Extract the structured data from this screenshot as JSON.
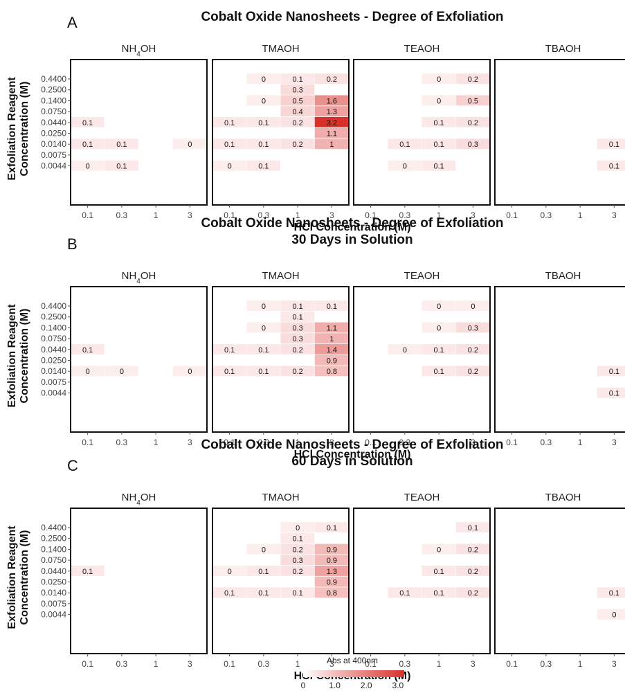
{
  "chart_data": {
    "type": "heatmap",
    "xlabel": "HCl Concentration (M)",
    "ylabel": "Exfoliation Reagent Concentration (M)",
    "x_categories": [
      "0.1",
      "0.3",
      "1",
      "3"
    ],
    "y_categories": [
      "0.4400",
      "0.2500",
      "0.1400",
      "0.0750",
      "0.0440",
      "0.0250",
      "0.0140",
      "0.0075",
      "0.0044"
    ],
    "facets": [
      {
        "label": "NH",
        "sub": "4",
        "tail": "OH"
      },
      {
        "label": "TMAOH",
        "sub": "",
        "tail": ""
      },
      {
        "label": "TEAOH",
        "sub": "",
        "tail": ""
      },
      {
        "label": "TBAOH",
        "sub": "",
        "tail": ""
      }
    ],
    "legend": {
      "title": "Abs at 400nm",
      "ticks": [
        "0",
        "1.0",
        "2.0",
        "3.0"
      ],
      "range": [
        0,
        3.2
      ],
      "color_low": "#fdeeee",
      "color_high": "#d7312a",
      "placement": "bottom"
    },
    "panels": [
      {
        "letter": "A",
        "title_lines": [
          "Cobalt Oxide Nanosheets - Degree of Exfoliation"
        ],
        "cells": [
          [
            0,
            "0.1",
            "0.0440",
            0.1,
            "0.1"
          ],
          [
            0,
            "0.1",
            "0.0140",
            0.1,
            "0.1"
          ],
          [
            0,
            "0.3",
            "0.0140",
            0.1,
            "0.1"
          ],
          [
            0,
            "3",
            "0.0140",
            0,
            "0"
          ],
          [
            0,
            "0.1",
            "0.0044",
            0,
            "0"
          ],
          [
            0,
            "0.3",
            "0.0044",
            0.1,
            "0.1"
          ],
          [
            1,
            "0.3",
            "0.4400",
            0,
            "0"
          ],
          [
            1,
            "1",
            "0.4400",
            0.1,
            "0.1"
          ],
          [
            1,
            "3",
            "0.4400",
            0.2,
            "0.2"
          ],
          [
            1,
            "1",
            "0.2500",
            0.3,
            "0.3"
          ],
          [
            1,
            "0.3",
            "0.1400",
            0,
            "0"
          ],
          [
            1,
            "1",
            "0.1400",
            0.5,
            "0.5"
          ],
          [
            1,
            "3",
            "0.1400",
            1.6,
            "1.6"
          ],
          [
            1,
            "1",
            "0.0750",
            0.4,
            "0.4"
          ],
          [
            1,
            "3",
            "0.0750",
            1.3,
            "1.3"
          ],
          [
            1,
            "0.1",
            "0.0440",
            0.1,
            "0.1"
          ],
          [
            1,
            "0.3",
            "0.0440",
            0.1,
            "0.1"
          ],
          [
            1,
            "1",
            "0.0440",
            0.2,
            "0.2"
          ],
          [
            1,
            "3",
            "0.0440",
            3.2,
            "3.2"
          ],
          [
            1,
            "3",
            "0.0250",
            1.1,
            "1.1"
          ],
          [
            1,
            "0.1",
            "0.0140",
            0.1,
            "0.1"
          ],
          [
            1,
            "0.3",
            "0.0140",
            0.1,
            "0.1"
          ],
          [
            1,
            "1",
            "0.0140",
            0.2,
            "0.2"
          ],
          [
            1,
            "3",
            "0.0140",
            1,
            "1"
          ],
          [
            1,
            "0.1",
            "0.0044",
            0,
            "0"
          ],
          [
            1,
            "0.3",
            "0.0044",
            0.1,
            "0.1"
          ],
          [
            2,
            "1",
            "0.4400",
            0,
            "0"
          ],
          [
            2,
            "3",
            "0.4400",
            0.2,
            "0.2"
          ],
          [
            2,
            "1",
            "0.1400",
            0,
            "0"
          ],
          [
            2,
            "3",
            "0.1400",
            0.5,
            "0.5"
          ],
          [
            2,
            "1",
            "0.0440",
            0.1,
            "0.1"
          ],
          [
            2,
            "3",
            "0.0440",
            0.2,
            "0.2"
          ],
          [
            2,
            "0.3",
            "0.0140",
            0.1,
            "0.1"
          ],
          [
            2,
            "1",
            "0.0140",
            0.1,
            "0.1"
          ],
          [
            2,
            "3",
            "0.0140",
            0.3,
            "0.3"
          ],
          [
            2,
            "0.3",
            "0.0044",
            0,
            "0"
          ],
          [
            2,
            "1",
            "0.0044",
            0.1,
            "0.1"
          ],
          [
            3,
            "3",
            "0.0140",
            0.1,
            "0.1"
          ],
          [
            3,
            "3",
            "0.0044",
            0.1,
            "0.1"
          ]
        ]
      },
      {
        "letter": "B",
        "title_lines": [
          "Cobalt Oxide Nanosheets - Degree of Exfoliation",
          "30 Days in Solution"
        ],
        "cells": [
          [
            0,
            "0.1",
            "0.0440",
            0.1,
            "0.1"
          ],
          [
            0,
            "0.1",
            "0.0140",
            0,
            "0"
          ],
          [
            0,
            "0.3",
            "0.0140",
            0,
            "0"
          ],
          [
            0,
            "3",
            "0.0140",
            0,
            "0"
          ],
          [
            1,
            "0.3",
            "0.4400",
            0,
            "0"
          ],
          [
            1,
            "1",
            "0.4400",
            0.1,
            "0.1"
          ],
          [
            1,
            "3",
            "0.4400",
            0.1,
            "0.1"
          ],
          [
            1,
            "1",
            "0.2500",
            0.1,
            "0.1"
          ],
          [
            1,
            "0.3",
            "0.1400",
            0,
            "0"
          ],
          [
            1,
            "1",
            "0.1400",
            0.3,
            "0.3"
          ],
          [
            1,
            "3",
            "0.1400",
            1.1,
            "1.1"
          ],
          [
            1,
            "1",
            "0.0750",
            0.3,
            "0.3"
          ],
          [
            1,
            "3",
            "0.0750",
            1,
            "1"
          ],
          [
            1,
            "0.1",
            "0.0440",
            0.1,
            "0.1"
          ],
          [
            1,
            "0.3",
            "0.0440",
            0.1,
            "0.1"
          ],
          [
            1,
            "1",
            "0.0440",
            0.2,
            "0.2"
          ],
          [
            1,
            "3",
            "0.0440",
            1.4,
            "1.4"
          ],
          [
            1,
            "3",
            "0.0250",
            0.9,
            "0.9"
          ],
          [
            1,
            "0.1",
            "0.0140",
            0.1,
            "0.1"
          ],
          [
            1,
            "0.3",
            "0.0140",
            0.1,
            "0.1"
          ],
          [
            1,
            "1",
            "0.0140",
            0.2,
            "0.2"
          ],
          [
            1,
            "3",
            "0.0140",
            0.8,
            "0.8"
          ],
          [
            2,
            "1",
            "0.4400",
            0,
            "0"
          ],
          [
            2,
            "3",
            "0.4400",
            0,
            "0"
          ],
          [
            2,
            "1",
            "0.1400",
            0,
            "0"
          ],
          [
            2,
            "3",
            "0.1400",
            0.3,
            "0.3"
          ],
          [
            2,
            "0.3",
            "0.0440",
            0,
            "0"
          ],
          [
            2,
            "1",
            "0.0440",
            0.1,
            "0.1"
          ],
          [
            2,
            "3",
            "0.0440",
            0.2,
            "0.2"
          ],
          [
            2,
            "1",
            "0.0140",
            0.1,
            "0.1"
          ],
          [
            2,
            "3",
            "0.0140",
            0.2,
            "0.2"
          ],
          [
            3,
            "3",
            "0.0140",
            0.1,
            "0.1"
          ],
          [
            3,
            "3",
            "0.0044",
            0.1,
            "0.1"
          ]
        ]
      },
      {
        "letter": "C",
        "title_lines": [
          "Cobalt Oxide Nanosheets - Degree of Exfoliation",
          "60 Days in Solution"
        ],
        "cells": [
          [
            0,
            "0.1",
            "0.0440",
            0.1,
            "0.1"
          ],
          [
            1,
            "1",
            "0.4400",
            0,
            "0"
          ],
          [
            1,
            "3",
            "0.4400",
            0.1,
            "0.1"
          ],
          [
            1,
            "1",
            "0.2500",
            0.1,
            "0.1"
          ],
          [
            1,
            "0.3",
            "0.1400",
            0,
            "0"
          ],
          [
            1,
            "1",
            "0.1400",
            0.2,
            "0.2"
          ],
          [
            1,
            "3",
            "0.1400",
            0.9,
            "0.9"
          ],
          [
            1,
            "1",
            "0.0750",
            0.3,
            "0.3"
          ],
          [
            1,
            "3",
            "0.0750",
            0.9,
            "0.9"
          ],
          [
            1,
            "0.1",
            "0.0440",
            0,
            "0"
          ],
          [
            1,
            "0.3",
            "0.0440",
            0.1,
            "0.1"
          ],
          [
            1,
            "1",
            "0.0440",
            0.2,
            "0.2"
          ],
          [
            1,
            "3",
            "0.0440",
            1.3,
            "1.3"
          ],
          [
            1,
            "3",
            "0.0250",
            0.9,
            "0.9"
          ],
          [
            1,
            "0.1",
            "0.0140",
            0.1,
            "0.1"
          ],
          [
            1,
            "0.3",
            "0.0140",
            0.1,
            "0.1"
          ],
          [
            1,
            "1",
            "0.0140",
            0.1,
            "0.1"
          ],
          [
            1,
            "3",
            "0.0140",
            0.8,
            "0.8"
          ],
          [
            2,
            "3",
            "0.4400",
            0.1,
            "0.1"
          ],
          [
            2,
            "1",
            "0.1400",
            0,
            "0"
          ],
          [
            2,
            "3",
            "0.1400",
            0.2,
            "0.2"
          ],
          [
            2,
            "1",
            "0.0440",
            0.1,
            "0.1"
          ],
          [
            2,
            "3",
            "0.0440",
            0.2,
            "0.2"
          ],
          [
            2,
            "0.3",
            "0.0140",
            0.1,
            "0.1"
          ],
          [
            2,
            "1",
            "0.0140",
            0.1,
            "0.1"
          ],
          [
            2,
            "3",
            "0.0140",
            0.2,
            "0.2"
          ],
          [
            3,
            "3",
            "0.0140",
            0.1,
            "0.1"
          ],
          [
            3,
            "3",
            "0.0044",
            0,
            "0"
          ]
        ]
      }
    ]
  }
}
